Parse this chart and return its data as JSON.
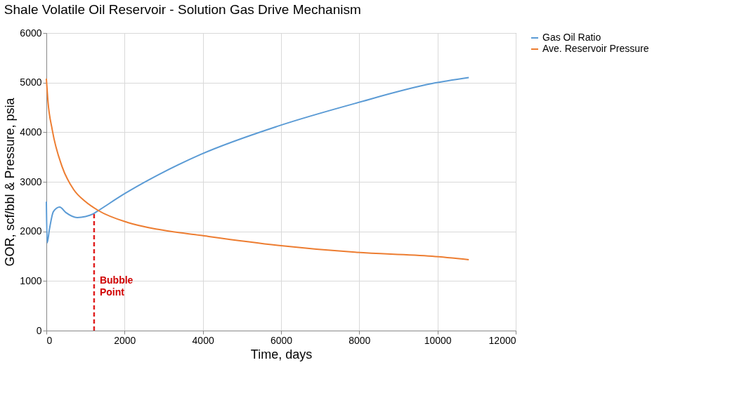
{
  "chart_data": {
    "type": "line",
    "title": "Shale Volatile Oil Reservoir - Solution Gas Drive Mechanism",
    "xlabel": "Time, days",
    "ylabel": "GOR, scf/bbl & Pressure, psia",
    "series": [
      {
        "name": "Gas Oil Ratio",
        "color": "#5b9bd5",
        "x": [
          0,
          20,
          80,
          180,
          340,
          500,
          790,
          1000,
          1190,
          1330,
          2000,
          2860,
          3940,
          5910,
          7890,
          9860,
          10800
        ],
        "values": [
          2600,
          1770,
          2050,
          2400,
          2490,
          2380,
          2280,
          2300,
          2350,
          2420,
          2760,
          3140,
          3550,
          4120,
          4580,
          4980,
          5100
        ]
      },
      {
        "name": "Ave. Reservoir Pressure",
        "color": "#ed7d31",
        "x": [
          0,
          40,
          150,
          400,
          700,
          1000,
          1330,
          2080,
          2860,
          3940,
          5910,
          7890,
          9860,
          10800
        ],
        "values": [
          5080,
          4630,
          4050,
          3310,
          2840,
          2600,
          2420,
          2180,
          2040,
          1920,
          1720,
          1580,
          1500,
          1430
        ]
      }
    ],
    "xlim": [
      0,
      12000
    ],
    "xticks": [
      0,
      2000,
      4000,
      6000,
      8000,
      10000,
      12000
    ],
    "ylim": [
      0,
      6000
    ],
    "yticks": [
      0,
      1000,
      2000,
      3000,
      4000,
      5000,
      6000
    ],
    "grid": true,
    "legend": "right",
    "line_style": "solid",
    "marker": "none",
    "ref_lines": [
      {
        "axis": "x",
        "value": 1220,
        "label": null,
        "color": "#e02020",
        "line_style": "dashed"
      }
    ],
    "annotations": [
      {
        "text": "Bubble\nPoint",
        "x": 1220,
        "y": 1000
      }
    ]
  }
}
